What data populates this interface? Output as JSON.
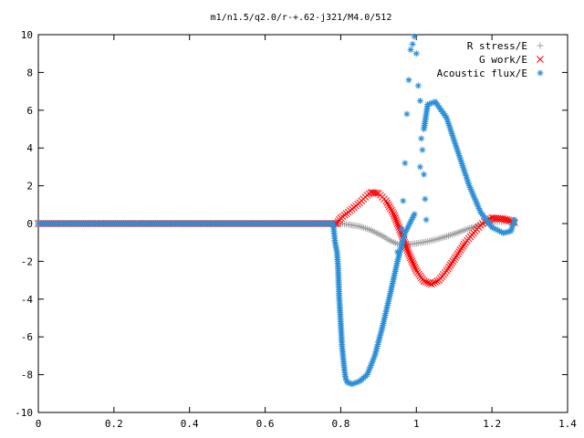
{
  "chart_data": {
    "type": "scatter",
    "title": "m1/n1.5/q2.0/r-+.62-j321/M4.0/512",
    "xlabel": "",
    "ylabel": "",
    "xlim": [
      0,
      1.4
    ],
    "ylim": [
      -10,
      10
    ],
    "x_ticks": [
      "0",
      "0.2",
      "0.4",
      "0.6",
      "0.8",
      "1",
      "1.2",
      "1.4"
    ],
    "y_ticks": [
      "10",
      "8",
      "6",
      "4",
      "2",
      "0",
      "-2",
      "-4",
      "-6",
      "-8",
      "-10"
    ],
    "grid": false,
    "legend_position": "top-right",
    "series": [
      {
        "name": "R stress/E",
        "marker": "+",
        "color": "#a0a0a0",
        "points": [
          [
            0.0,
            0.0
          ],
          [
            0.79,
            0.0
          ],
          [
            0.8,
            0.0
          ],
          [
            0.82,
            -0.05
          ],
          [
            0.85,
            -0.15
          ],
          [
            0.88,
            -0.35
          ],
          [
            0.91,
            -0.65
          ],
          [
            0.93,
            -0.9
          ],
          [
            0.95,
            -1.08
          ],
          [
            0.97,
            -1.12
          ],
          [
            1.0,
            -1.05
          ],
          [
            1.03,
            -0.95
          ],
          [
            1.06,
            -0.8
          ],
          [
            1.1,
            -0.55
          ],
          [
            1.14,
            -0.25
          ],
          [
            1.18,
            0.0
          ],
          [
            1.21,
            0.1
          ],
          [
            1.24,
            0.1
          ],
          [
            1.26,
            0.05
          ]
        ]
      },
      {
        "name": "G work/E",
        "marker": "x",
        "color": "#ff0000",
        "points": [
          [
            0.0,
            0.0
          ],
          [
            0.79,
            0.0
          ],
          [
            0.8,
            0.3
          ],
          [
            0.82,
            0.6
          ],
          [
            0.85,
            1.1
          ],
          [
            0.87,
            1.5
          ],
          [
            0.88,
            1.65
          ],
          [
            0.9,
            1.6
          ],
          [
            0.92,
            1.2
          ],
          [
            0.94,
            0.5
          ],
          [
            0.96,
            -0.5
          ],
          [
            0.98,
            -1.6
          ],
          [
            1.0,
            -2.5
          ],
          [
            1.02,
            -3.05
          ],
          [
            1.04,
            -3.2
          ],
          [
            1.06,
            -3.0
          ],
          [
            1.08,
            -2.5
          ],
          [
            1.1,
            -1.9
          ],
          [
            1.13,
            -1.0
          ],
          [
            1.16,
            -0.3
          ],
          [
            1.18,
            0.1
          ],
          [
            1.2,
            0.3
          ],
          [
            1.23,
            0.25
          ],
          [
            1.25,
            0.15
          ],
          [
            1.26,
            0.05
          ]
        ]
      },
      {
        "name": "Acoustic flux/E",
        "marker": "*",
        "color": "#2e8fd6",
        "points": [
          [
            0.0,
            0.0
          ],
          [
            0.78,
            0.0
          ],
          [
            0.785,
            -1.0
          ],
          [
            0.79,
            -1.5
          ],
          [
            0.793,
            -2.3
          ],
          [
            0.796,
            -3.9
          ],
          [
            0.8,
            -5.3
          ],
          [
            0.803,
            -6.4
          ],
          [
            0.806,
            -7.0
          ],
          [
            0.81,
            -7.8
          ],
          [
            0.813,
            -8.2
          ],
          [
            0.817,
            -8.4
          ],
          [
            0.83,
            -8.5
          ],
          [
            0.85,
            -8.35
          ],
          [
            0.87,
            -8.0
          ],
          [
            0.89,
            -7.0
          ],
          [
            0.91,
            -5.5
          ],
          [
            0.93,
            -3.8
          ],
          [
            0.95,
            -2.0
          ],
          [
            0.97,
            -0.5
          ],
          [
            0.995,
            0.5
          ],
          [
            1.01,
            3.0
          ],
          [
            1.02,
            5.0
          ],
          [
            1.03,
            6.3
          ],
          [
            1.05,
            6.45
          ],
          [
            1.08,
            5.6
          ],
          [
            1.11,
            3.8
          ],
          [
            1.14,
            2.0
          ],
          [
            1.17,
            0.6
          ],
          [
            1.2,
            -0.2
          ],
          [
            1.23,
            -0.5
          ],
          [
            1.25,
            -0.4
          ],
          [
            1.26,
            0.2
          ],
          [
            0.95,
            -1.5
          ],
          [
            0.96,
            -0.3
          ],
          [
            0.965,
            1.2
          ],
          [
            0.97,
            3.2
          ],
          [
            0.975,
            5.8
          ],
          [
            0.98,
            7.6
          ],
          [
            0.985,
            9.2
          ],
          [
            0.99,
            9.5
          ],
          [
            0.995,
            9.9
          ],
          [
            1.0,
            9.0
          ],
          [
            1.005,
            7.3
          ],
          [
            1.01,
            6.5
          ],
          [
            1.013,
            4.5
          ],
          [
            1.016,
            3.9
          ],
          [
            1.02,
            2.6
          ],
          [
            1.023,
            1.3
          ],
          [
            1.026,
            0.2
          ]
        ]
      }
    ]
  }
}
